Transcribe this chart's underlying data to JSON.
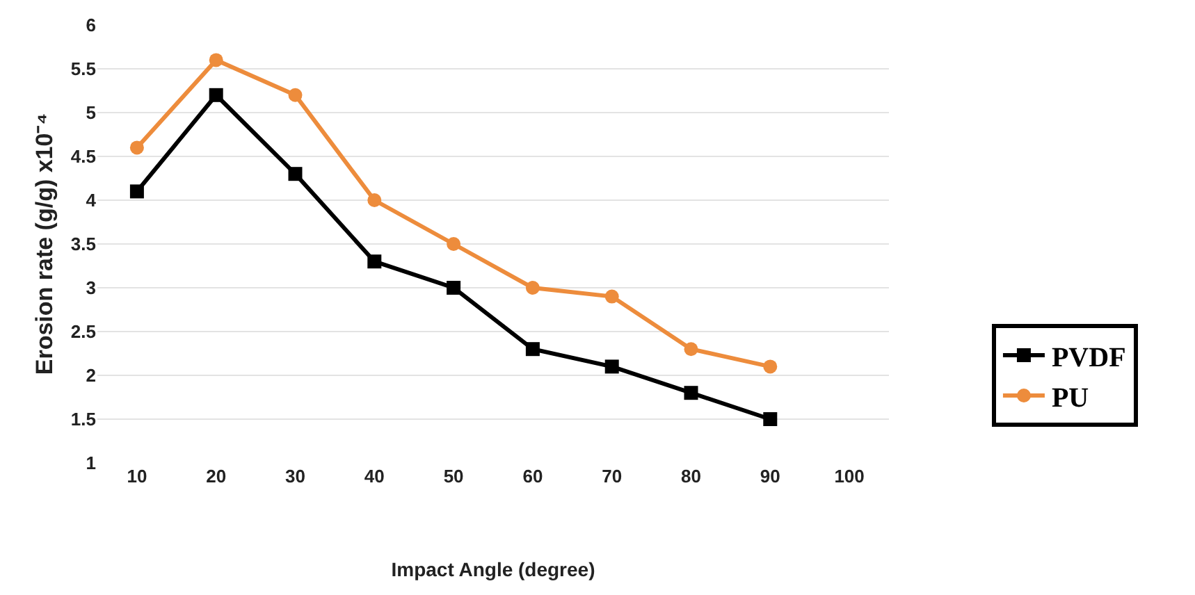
{
  "chart_data": {
    "type": "line",
    "xlabel": "Impact Angle (degree)",
    "ylabel": "Erosion rate (g/g) x10⁻⁴",
    "x": [
      10,
      20,
      30,
      40,
      50,
      60,
      70,
      80,
      90
    ],
    "series": [
      {
        "name": "PVDF",
        "color": "#000000",
        "marker": "square",
        "values": [
          4.1,
          5.2,
          4.3,
          3.3,
          3.0,
          2.3,
          2.1,
          1.8,
          1.5
        ]
      },
      {
        "name": "PU",
        "color": "#ed8c3c",
        "marker": "circle",
        "values": [
          4.6,
          5.6,
          5.2,
          4.0,
          3.5,
          3.0,
          2.9,
          2.3,
          2.1
        ]
      }
    ],
    "xlim": [
      5,
      105
    ],
    "xticks": [
      10,
      20,
      30,
      40,
      50,
      60,
      70,
      80,
      90,
      100
    ],
    "ylim": [
      1,
      6
    ],
    "yticks": [
      1,
      1.5,
      2,
      2.5,
      3,
      3.5,
      4,
      4.5,
      5,
      5.5,
      6
    ],
    "grid": "y",
    "legend": "right",
    "line_style": "solid"
  }
}
